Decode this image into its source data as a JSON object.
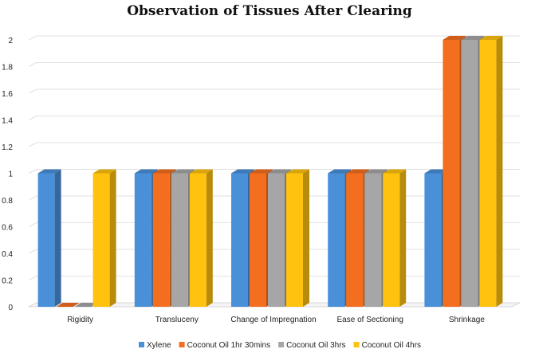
{
  "chart_data": {
    "type": "bar",
    "title": "Observation of Tissues After Clearing",
    "xlabel": "",
    "ylabel": "",
    "ylim": [
      0,
      2
    ],
    "yticks": [
      "0",
      "0.2",
      "0.4",
      "0.6",
      "0.8",
      "1",
      "1.2",
      "1.4",
      "1.6",
      "1.8",
      "2"
    ],
    "categories": [
      "Rigidity",
      "Transluceny",
      "Change of Impregnation",
      "Ease of Sectioning",
      "Shrinkage"
    ],
    "series": [
      {
        "name": "Xylene",
        "values": [
          1,
          1,
          1,
          1,
          1
        ],
        "color": "#4a90d9"
      },
      {
        "name": "Coconut Oil 1hr 30mins",
        "values": [
          0,
          1,
          1,
          1,
          2
        ],
        "color": "#f36f1f"
      },
      {
        "name": "Coconut Oil 3hrs",
        "values": [
          0,
          1,
          1,
          1,
          2
        ],
        "color": "#a6a6a6"
      },
      {
        "name": "Coconut Oil 4hrs",
        "values": [
          1,
          1,
          1,
          1,
          2
        ],
        "color": "#ffc20e"
      }
    ],
    "grid": true,
    "legend": "bottom",
    "style": "3d-bars"
  }
}
